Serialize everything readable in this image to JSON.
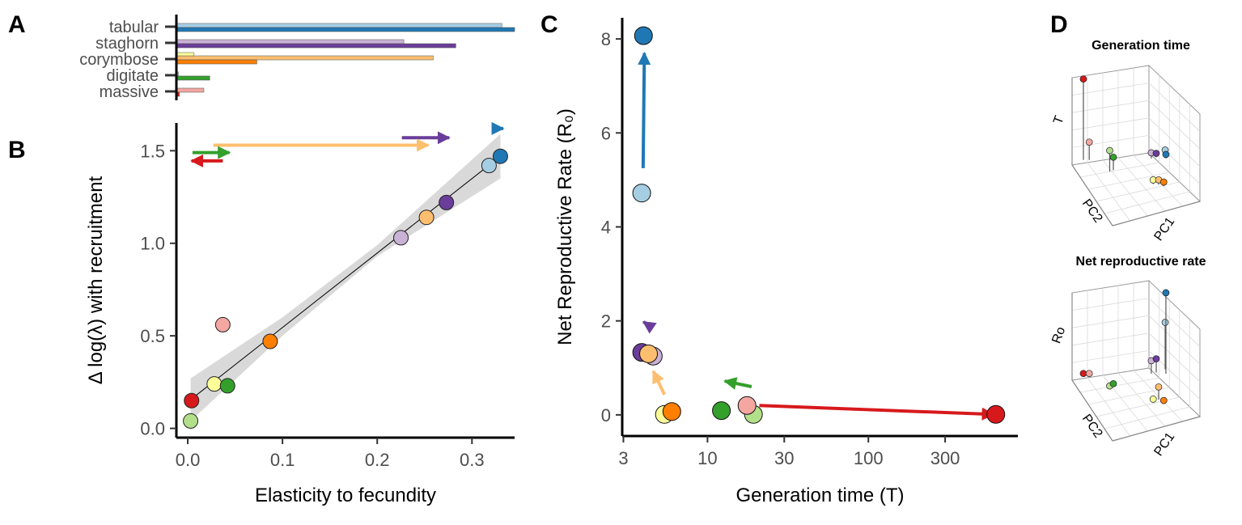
{
  "colors": {
    "massive": [
      "#f4a6a0",
      "#d7191c"
    ],
    "digitate": [
      "#b2df8a",
      "#33a02c"
    ],
    "corymbose": [
      "#ffff99",
      "#ff7f00"
    ],
    "corymbose_light": "#fdbf6f",
    "staghorn": [
      "#cab2d6",
      "#6a3d9a"
    ],
    "tabular": [
      "#a6cee3",
      "#1f78b4"
    ],
    "band": "#d9d9d9"
  },
  "chart_data": [
    {
      "panel": "A",
      "type": "bar",
      "orientation": "horizontal",
      "categories": [
        "massive",
        "digitate",
        "corymbose",
        "staghorn",
        "tabular"
      ],
      "series": [
        {
          "values": [
            0.028,
            0.002,
            0.262,
            0.232,
            0.332
          ]
        },
        {
          "values": [
            0.003,
            0.034,
            0.082,
            0.285,
            0.345
          ]
        },
        {
          "values": [
            null,
            null,
            0.018,
            null,
            null
          ]
        }
      ],
      "xlim": [
        0,
        0.345
      ]
    },
    {
      "panel": "B",
      "type": "scatter",
      "xlabel": "Elasticity to fecundity",
      "ylabel": "Δ log(λ) with recruitment",
      "xlim": [
        -0.012,
        0.345
      ],
      "ylim": [
        -0.05,
        1.65
      ],
      "xticks": [
        "0.0",
        "0.1",
        "0.2",
        "0.3"
      ],
      "yticks": [
        "0.0",
        "0.5",
        "1.0",
        "1.5"
      ],
      "points": [
        {
          "group": "digitate",
          "shade": "light",
          "x": 0.003,
          "y": 0.04
        },
        {
          "group": "massive",
          "shade": "dark",
          "x": 0.004,
          "y": 0.15
        },
        {
          "group": "corymbose",
          "shade": "light",
          "x": 0.028,
          "y": 0.24
        },
        {
          "group": "digitate",
          "shade": "dark",
          "x": 0.042,
          "y": 0.23
        },
        {
          "group": "massive",
          "shade": "light",
          "x": 0.037,
          "y": 0.56
        },
        {
          "group": "corymbose",
          "shade": "dark",
          "x": 0.087,
          "y": 0.47
        },
        {
          "group": "staghorn",
          "shade": "light",
          "x": 0.225,
          "y": 1.03
        },
        {
          "group": "corymbose",
          "shade": "mid",
          "x": 0.252,
          "y": 1.14
        },
        {
          "group": "staghorn",
          "shade": "dark",
          "x": 0.273,
          "y": 1.22
        },
        {
          "group": "tabular",
          "shade": "light",
          "x": 0.318,
          "y": 1.42
        },
        {
          "group": "tabular",
          "shade": "dark",
          "x": 0.33,
          "y": 1.47
        }
      ],
      "fit_line": [
        [
          0.003,
          0.155
        ],
        [
          0.33,
          1.47
        ]
      ],
      "band": [
        [
          0.003,
          0.04,
          0.27
        ],
        [
          0.1,
          0.5,
          0.6
        ],
        [
          0.2,
          0.93,
          0.99
        ],
        [
          0.33,
          1.35,
          1.59
        ]
      ],
      "arrows": [
        {
          "group": "tabular",
          "x1": 0.322,
          "x2": 0.333,
          "y": 1.62
        },
        {
          "group": "staghorn",
          "x1": 0.226,
          "x2": 0.276,
          "y": 1.57
        },
        {
          "group": "corymbose",
          "x1": 0.027,
          "x2": 0.254,
          "y": 1.53
        },
        {
          "group": "digitate",
          "x1": 0.005,
          "x2": 0.044,
          "y": 1.49
        },
        {
          "group": "massive",
          "x1": 0.037,
          "x2": 0.004,
          "y": 1.445
        }
      ]
    },
    {
      "panel": "C",
      "type": "scatter",
      "xlabel": "Generation time (T)",
      "ylabel": "Net Reproductive Rate (R₀)",
      "xscale": "log",
      "xlim": [
        2.95,
        850
      ],
      "ylim": [
        -0.45,
        8.45
      ],
      "xticks": [
        3,
        10,
        30,
        100,
        300
      ],
      "yticks": [
        0,
        2,
        4,
        6,
        8
      ],
      "points": [
        {
          "group": "tabular",
          "shade": "light",
          "x": 3.9,
          "y": 4.72
        },
        {
          "group": "tabular",
          "shade": "dark",
          "x": 4.0,
          "y": 8.07
        },
        {
          "group": "staghorn",
          "shade": "dark",
          "x": 3.9,
          "y": 1.33
        },
        {
          "group": "staghorn",
          "shade": "light",
          "x": 4.6,
          "y": 1.25
        },
        {
          "group": "corymbose",
          "shade": "mid",
          "x": 4.3,
          "y": 1.3
        },
        {
          "group": "corymbose",
          "shade": "light",
          "x": 5.4,
          "y": 0.01
        },
        {
          "group": "corymbose",
          "shade": "dark",
          "x": 6.0,
          "y": 0.07
        },
        {
          "group": "digitate",
          "shade": "dark",
          "x": 12.2,
          "y": 0.09
        },
        {
          "group": "digitate",
          "shade": "light",
          "x": 19.3,
          "y": 0.01
        },
        {
          "group": "massive",
          "shade": "light",
          "x": 17.6,
          "y": 0.2
        },
        {
          "group": "massive",
          "shade": "dark",
          "x": 620,
          "y": 0.01
        }
      ],
      "arrows": [
        {
          "group": "tabular",
          "x1": 3.98,
          "y1": 5.25,
          "x2": 4.05,
          "y2": 7.7
        },
        {
          "group": "staghorn",
          "x1": 4.55,
          "y1": 1.85,
          "x2": 4.0,
          "y2": 1.98
        },
        {
          "group": "corymbose",
          "x1": 5.4,
          "y1": 0.43,
          "x2": 4.6,
          "y2": 0.93
        },
        {
          "group": "digitate",
          "x1": 18.8,
          "y1": 0.6,
          "x2": 12.8,
          "y2": 0.72
        },
        {
          "group": "massive",
          "x1": 21,
          "y1": 0.2,
          "x2": 600,
          "y2": 0.01
        }
      ]
    },
    {
      "panel": "D",
      "type": "scatter",
      "subplots": [
        {
          "title": "Generation time",
          "zlabel": "T",
          "axis_labels": [
            "PC2",
            "PC1"
          ],
          "points": [
            {
              "group": "massive",
              "shade": "dark",
              "x": 0.06,
              "y": 0.1,
              "z": 1.0
            },
            {
              "group": "massive",
              "shade": "light",
              "x": 0.1,
              "y": 0.12,
              "z": 0.22
            },
            {
              "group": "digitate",
              "shade": "light",
              "x": 0.28,
              "y": 0.05,
              "z": 0.26
            },
            {
              "group": "digitate",
              "shade": "dark",
              "x": 0.3,
              "y": 0.08,
              "z": 0.16
            },
            {
              "group": "corymbose",
              "shade": "light",
              "x": 0.62,
              "y": 0.05,
              "z": 0.05
            },
            {
              "group": "corymbose",
              "shade": "mid",
              "x": 0.66,
              "y": 0.06,
              "z": 0.06
            },
            {
              "group": "corymbose",
              "shade": "dark",
              "x": 0.7,
              "y": 0.06,
              "z": 0.05
            },
            {
              "group": "staghorn",
              "shade": "light",
              "x": 0.52,
              "y": 0.35,
              "z": 0.07
            },
            {
              "group": "staghorn",
              "shade": "dark",
              "x": 0.55,
              "y": 0.38,
              "z": 0.05
            },
            {
              "group": "tabular",
              "shade": "light",
              "x": 0.6,
              "y": 0.45,
              "z": 0.05
            },
            {
              "group": "tabular",
              "shade": "dark",
              "x": 0.62,
              "y": 0.4,
              "z": 0.05
            }
          ]
        },
        {
          "title": "Net reproductive rate",
          "zlabel": "Ro",
          "axis_labels": [
            "PC2",
            "PC1"
          ],
          "points": [
            {
              "group": "massive",
              "shade": "dark",
              "x": 0.06,
              "y": 0.1,
              "z": 0.02
            },
            {
              "group": "massive",
              "shade": "light",
              "x": 0.1,
              "y": 0.12,
              "z": 0.02
            },
            {
              "group": "digitate",
              "shade": "light",
              "x": 0.28,
              "y": 0.05,
              "z": 0.01
            },
            {
              "group": "digitate",
              "shade": "dark",
              "x": 0.3,
              "y": 0.08,
              "z": 0.02
            },
            {
              "group": "corymbose",
              "shade": "light",
              "x": 0.62,
              "y": 0.05,
              "z": 0.0
            },
            {
              "group": "corymbose",
              "shade": "mid",
              "x": 0.66,
              "y": 0.06,
              "z": 0.16
            },
            {
              "group": "corymbose",
              "shade": "dark",
              "x": 0.7,
              "y": 0.06,
              "z": 0.01
            },
            {
              "group": "staghorn",
              "shade": "light",
              "x": 0.52,
              "y": 0.35,
              "z": 0.16
            },
            {
              "group": "staghorn",
              "shade": "dark",
              "x": 0.55,
              "y": 0.38,
              "z": 0.17
            },
            {
              "group": "tabular",
              "shade": "light",
              "x": 0.6,
              "y": 0.45,
              "z": 0.58
            },
            {
              "group": "tabular",
              "shade": "dark",
              "x": 0.62,
              "y": 0.4,
              "z": 1.0
            }
          ]
        }
      ]
    }
  ]
}
